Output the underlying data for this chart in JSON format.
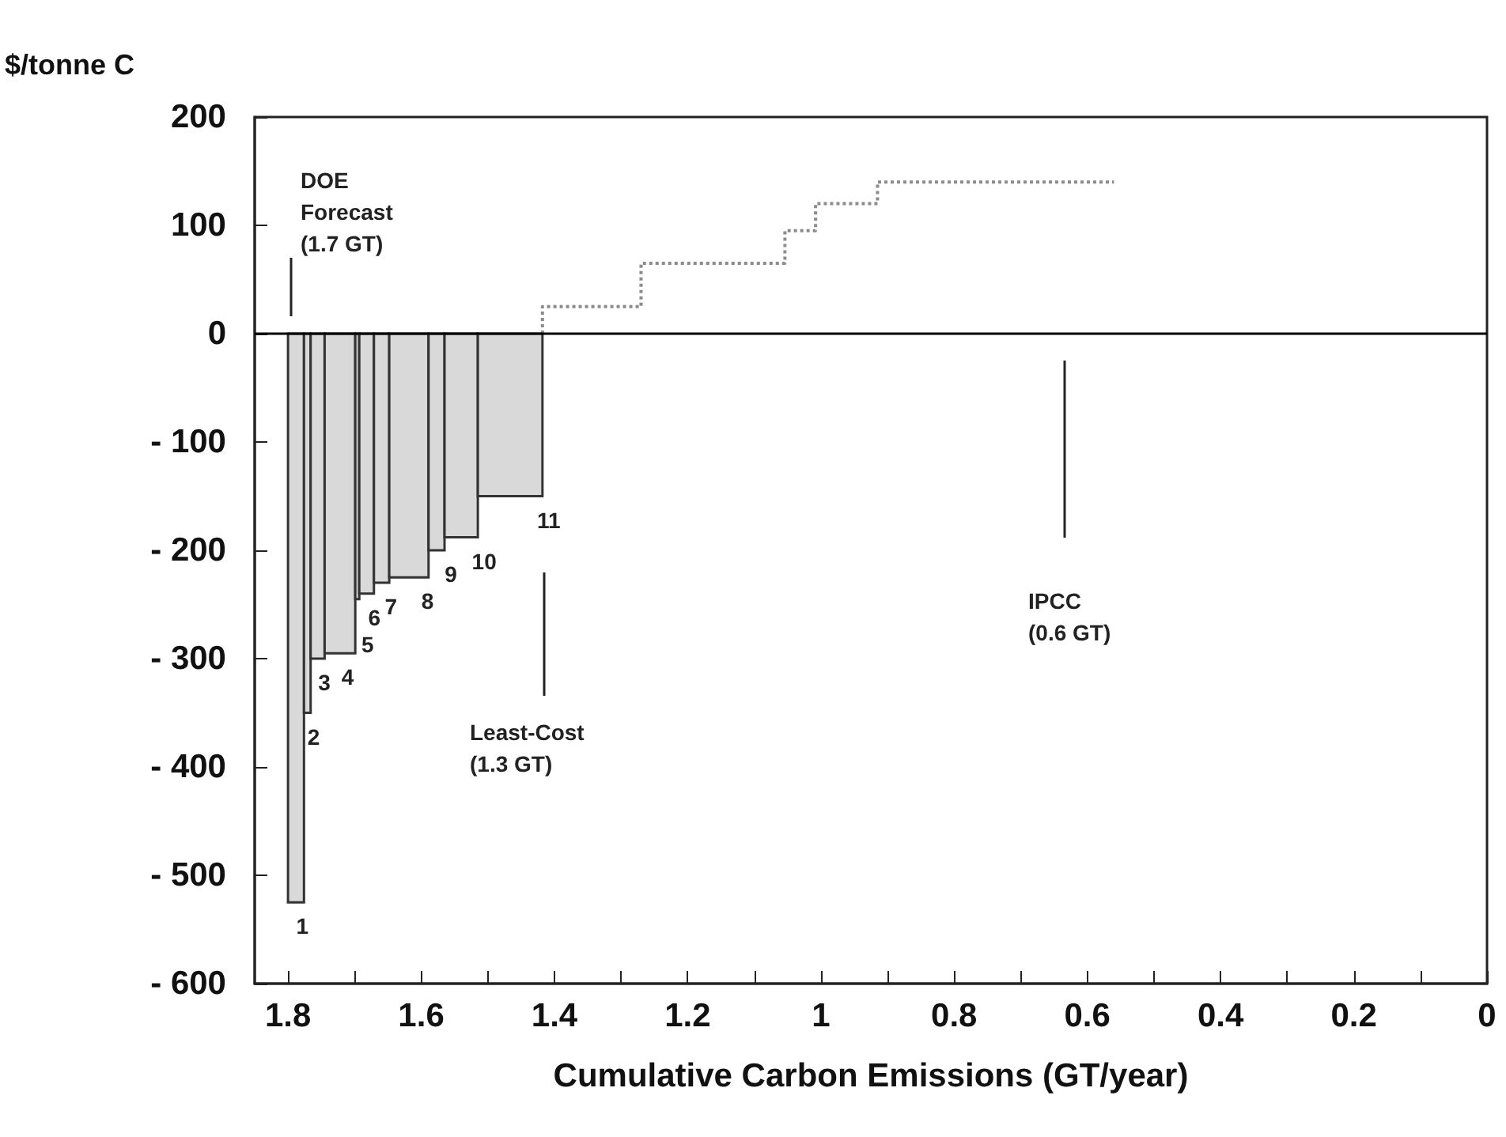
{
  "chart_data": {
    "type": "histogram",
    "xlabel": "Cumulative Carbon Emissions (GT/year)",
    "ylabel": "$/tonne C",
    "bins": [
      1.8,
      1.776,
      1.766,
      1.745,
      1.699,
      1.693,
      1.671,
      1.648,
      1.589,
      1.565,
      1.515,
      1.418
    ],
    "values": [
      -525,
      -350,
      -300,
      -295,
      -245,
      -240,
      -230,
      -225,
      -200,
      -188,
      -150
    ],
    "color": "#d9d9d9",
    "series": [
      {
        "type": "step",
        "color": "#8c8c8c",
        "line_style": "dotted",
        "x": [
          1.418,
          1.418,
          1.27,
          1.054,
          1.008,
          0.915,
          0.56
        ],
        "values": [
          0,
          25,
          65,
          95,
          120,
          140,
          140
        ]
      }
    ],
    "xlim": [
      1.85,
      0
    ],
    "xticks": [
      1.8,
      {
        "value": 1.7,
        "label": null
      },
      1.6,
      {
        "value": 1.5,
        "label": null
      },
      1.4,
      {
        "value": 1.3,
        "label": null
      },
      1.2,
      {
        "value": 1.1,
        "label": null
      },
      1.0,
      {
        "value": 0.9,
        "label": null
      },
      0.8,
      {
        "value": 0.7,
        "label": null
      },
      0.6,
      {
        "value": 0.5,
        "label": null
      },
      0.4,
      {
        "value": 0.3,
        "label": null
      },
      0.2,
      {
        "value": 0.1,
        "label": null
      },
      0
    ],
    "ylim": [
      -600,
      200
    ],
    "yticks": [
      -600,
      -500,
      -400,
      -300,
      -200,
      -100,
      0,
      100,
      200
    ],
    "ref_lines": [
      {
        "axis": "y",
        "value": 0,
        "color": "#000000",
        "line_style": "solid"
      }
    ],
    "annotations": [
      "DOE\nForecast\n(1.7 GT)",
      "Least-Cost\n(1.3 GT)",
      "IPCC\n(0.6 GT)",
      {
        "text": "1",
        "x": 1.788,
        "y": -525
      },
      {
        "text": "2",
        "x": 1.771,
        "y": -350
      },
      {
        "text": "3",
        "x": 1.755,
        "y": -300
      },
      {
        "text": "4",
        "x": 1.72,
        "y": -295
      },
      {
        "text": "5",
        "x": 1.69,
        "y": -265
      },
      {
        "text": "6",
        "x": 1.68,
        "y": -240
      },
      {
        "text": "7",
        "x": 1.655,
        "y": -230
      },
      {
        "text": "8",
        "x": 1.6,
        "y": -225
      },
      {
        "text": "9",
        "x": 1.565,
        "y": -200
      },
      {
        "text": "10",
        "x": 1.515,
        "y": -188
      },
      {
        "text": "11",
        "x": 1.418,
        "y": -150
      }
    ],
    "grid": false
  }
}
